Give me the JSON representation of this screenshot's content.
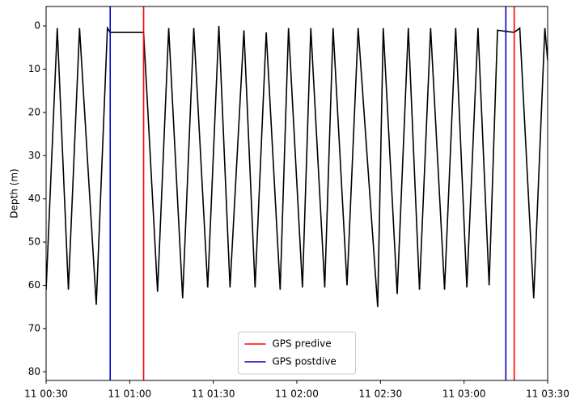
{
  "chart_data": {
    "type": "line",
    "ylabel": "Depth (m)",
    "x": [
      "11 00:30",
      "11 00:34",
      "11 00:38",
      "11 00:42",
      "11 00:48",
      "11 00:52",
      "11 00:53",
      "11 01:05",
      "11 01:10",
      "11 01:14",
      "11 01:19",
      "11 01:23",
      "11 01:28",
      "11 01:32",
      "11 01:36",
      "11 01:41",
      "11 01:45",
      "11 01:49",
      "11 01:54",
      "11 01:57",
      "11 02:02",
      "11 02:05",
      "11 02:10",
      "11 02:13",
      "11 02:18",
      "11 02:22",
      "11 02:29",
      "11 02:31",
      "11 02:36",
      "11 02:40",
      "11 02:44",
      "11 02:48",
      "11 02:53",
      "11 02:57",
      "11 03:01",
      "11 03:05",
      "11 03:09",
      "11 03:12",
      "11 03:18",
      "11 03:20",
      "11 03:25",
      "11 03:29",
      "11 03:30"
    ],
    "series": [
      {
        "color": "#000000",
        "values": [
          61,
          0.5,
          61,
          0.5,
          64.5,
          0.5,
          1.5,
          1.5,
          61.5,
          0.5,
          63,
          0.5,
          60.5,
          0,
          60.5,
          1,
          60.5,
          1.5,
          61,
          0.5,
          60.5,
          0.5,
          60.5,
          0.5,
          60,
          0.5,
          65,
          0.5,
          62,
          0.5,
          61,
          0.5,
          61,
          0.5,
          60.5,
          0.5,
          60,
          1,
          1.5,
          0.5,
          63,
          0.5,
          8
        ]
      }
    ],
    "vlines": [
      {
        "name": "GPS predive",
        "color": "#ff0000",
        "x": [
          "11 01:05",
          "11 03:18"
        ]
      },
      {
        "name": "GPS postdive",
        "color": "#0000cc",
        "x": [
          "11 00:53",
          "11 03:15"
        ]
      }
    ],
    "xlim": [
      "11 00:30",
      "11 03:30"
    ],
    "xticks": [
      "11 00:30",
      "11 01:00",
      "11 01:30",
      "11 02:00",
      "11 02:30",
      "11 03:00",
      "11 03:30"
    ],
    "ylim": [
      -4.5,
      82
    ],
    "inverted_y": true,
    "yticks": [
      0,
      10,
      20,
      30,
      40,
      50,
      60,
      70,
      80
    ],
    "legend": "lower center"
  }
}
